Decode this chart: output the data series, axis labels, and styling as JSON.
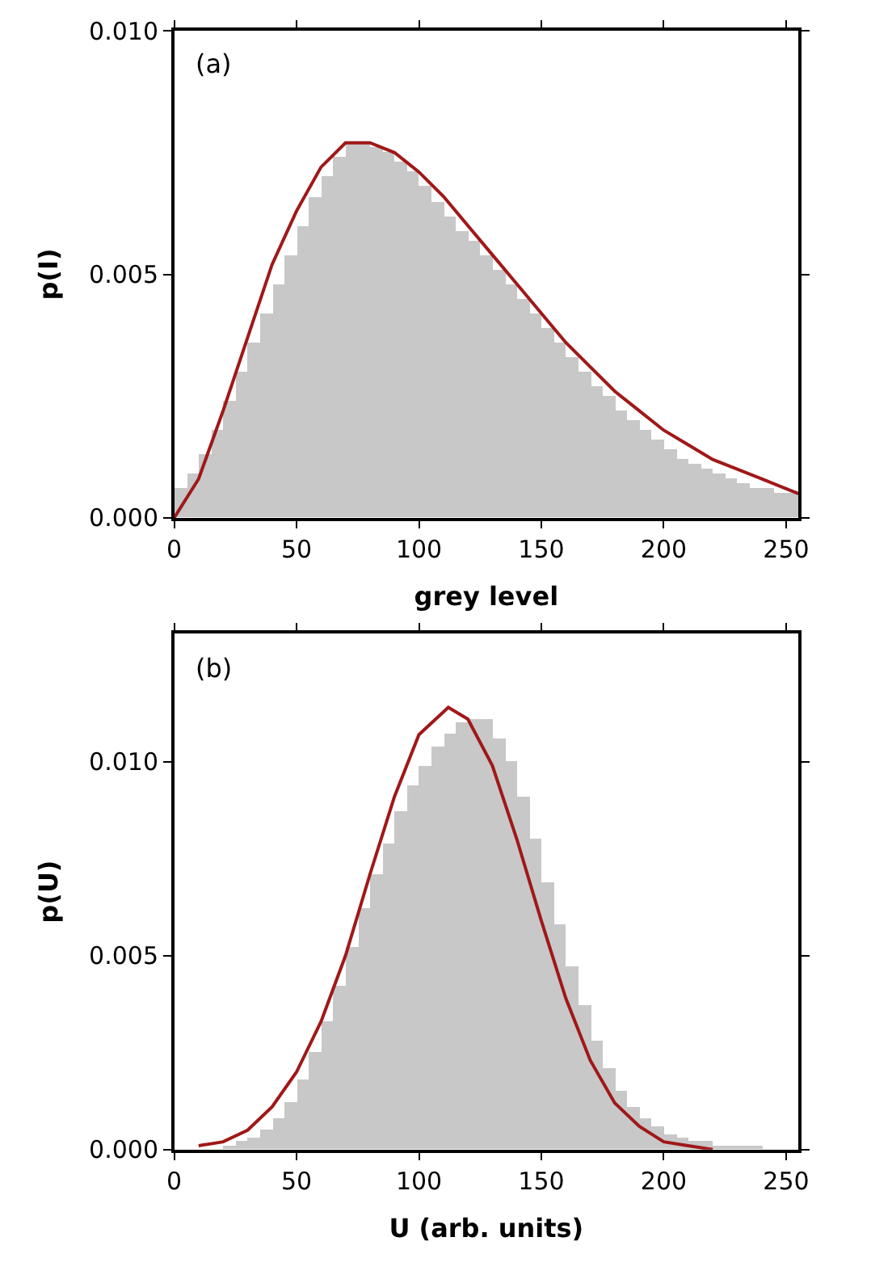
{
  "chart_data": [
    {
      "type": "histogram",
      "xlabel": "grey level",
      "ylabel": "p(I)",
      "annotations": [
        "(a)"
      ],
      "xlim": [
        0,
        255
      ],
      "ylim": [
        0,
        0.01
      ],
      "xticks": [
        0,
        50,
        100,
        150,
        200,
        250
      ],
      "yticks": [
        {
          "value": 0,
          "label": "0.000"
        },
        {
          "value": 0.005,
          "label": "0.005"
        },
        {
          "value": 0.01,
          "label": "0.010"
        }
      ],
      "series": [
        {
          "color": "#c8c8c8",
          "bins": [
            0,
            5,
            10,
            15,
            20,
            25,
            30,
            35,
            40,
            45,
            50,
            55,
            60,
            65,
            70,
            75,
            80,
            85,
            90,
            95,
            100,
            105,
            110,
            115,
            120,
            125,
            130,
            135,
            140,
            145,
            150,
            155,
            160,
            165,
            170,
            175,
            180,
            185,
            190,
            195,
            200,
            205,
            210,
            215,
            220,
            225,
            230,
            235,
            240,
            245,
            250,
            255
          ],
          "values": [
            0.0006,
            0.0009,
            0.0013,
            0.0018,
            0.0024,
            0.003,
            0.0036,
            0.0042,
            0.0048,
            0.0054,
            0.006,
            0.0066,
            0.007,
            0.0074,
            0.0077,
            0.0077,
            0.0076,
            0.0075,
            0.0073,
            0.0071,
            0.0068,
            0.0065,
            0.0062,
            0.0059,
            0.0057,
            0.0054,
            0.0051,
            0.0048,
            0.0045,
            0.0042,
            0.0039,
            0.0036,
            0.0033,
            0.003,
            0.0027,
            0.0025,
            0.0022,
            0.002,
            0.0018,
            0.0016,
            0.0014,
            0.0012,
            0.0011,
            0.001,
            0.0009,
            0.0008,
            0.0007,
            0.0006,
            0.0006,
            0.0005,
            0.0005
          ]
        },
        {
          "type": "line",
          "color": "#a01818",
          "x": [
            0,
            10,
            20,
            30,
            40,
            50,
            60,
            70,
            80,
            90,
            100,
            110,
            120,
            130,
            140,
            150,
            160,
            170,
            180,
            190,
            200,
            210,
            220,
            230,
            240,
            250,
            255
          ],
          "values": [
            0,
            0.0008,
            0.0022,
            0.0037,
            0.0052,
            0.0063,
            0.0072,
            0.0077,
            0.0077,
            0.0075,
            0.0071,
            0.0066,
            0.006,
            0.0054,
            0.0048,
            0.0042,
            0.0036,
            0.0031,
            0.0026,
            0.0022,
            0.0018,
            0.0015,
            0.0012,
            0.001,
            0.0008,
            0.0006,
            0.0005
          ]
        }
      ]
    },
    {
      "type": "histogram",
      "xlabel": "U (arb. units)",
      "ylabel": "p(U)",
      "annotations": [
        "(b)"
      ],
      "xlim": [
        0,
        255
      ],
      "ylim": [
        0,
        0.0133
      ],
      "xticks": [
        0,
        50,
        100,
        150,
        200,
        250
      ],
      "yticks": [
        {
          "value": 0,
          "label": "0.000"
        },
        {
          "value": 0.005,
          "label": "0.005"
        },
        {
          "value": 0.01,
          "label": "0.010"
        }
      ],
      "series": [
        {
          "color": "#c8c8c8",
          "bins": [
            0,
            5,
            10,
            15,
            20,
            25,
            30,
            35,
            40,
            45,
            50,
            55,
            60,
            65,
            70,
            75,
            80,
            85,
            90,
            95,
            100,
            105,
            110,
            115,
            120,
            125,
            130,
            135,
            140,
            145,
            150,
            155,
            160,
            165,
            170,
            175,
            180,
            185,
            190,
            195,
            200,
            205,
            210,
            215,
            220,
            225,
            230,
            235,
            240,
            245,
            250,
            255
          ],
          "values": [
            0,
            0,
            0,
            0,
            0.0001,
            0.0002,
            0.0003,
            0.0005,
            0.0008,
            0.0012,
            0.0018,
            0.0025,
            0.0033,
            0.0042,
            0.0052,
            0.0062,
            0.0071,
            0.0079,
            0.0087,
            0.0094,
            0.0099,
            0.0104,
            0.0107,
            0.011,
            0.0111,
            0.0111,
            0.0106,
            0.01,
            0.0091,
            0.008,
            0.0069,
            0.0058,
            0.0047,
            0.0037,
            0.0028,
            0.0021,
            0.0015,
            0.0011,
            0.0008,
            0.0006,
            0.0004,
            0.0003,
            0.0002,
            0.0002,
            0.0001,
            0.0001,
            0.0001,
            0.0001,
            0,
            0,
            0
          ]
        },
        {
          "type": "line",
          "color": "#a01818",
          "x": [
            10,
            20,
            30,
            40,
            50,
            60,
            70,
            80,
            90,
            100,
            112,
            120,
            130,
            140,
            150,
            160,
            170,
            180,
            190,
            200,
            210,
            220
          ],
          "values": [
            0.0001,
            0.0002,
            0.0005,
            0.0011,
            0.002,
            0.0033,
            0.005,
            0.0071,
            0.0091,
            0.0107,
            0.0114,
            0.0111,
            0.0099,
            0.008,
            0.0059,
            0.0039,
            0.0023,
            0.0012,
            0.0006,
            0.0002,
            0.0001,
            0
          ]
        }
      ]
    }
  ]
}
